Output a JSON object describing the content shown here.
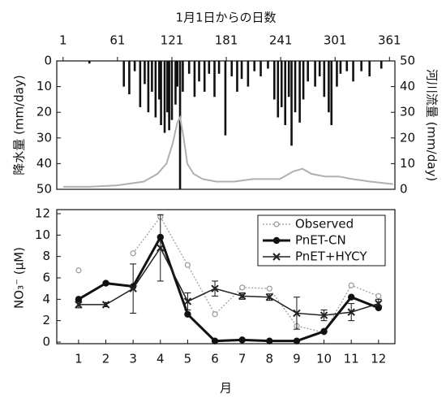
{
  "chart_data": [
    {
      "type": "bar",
      "xlabel": "1月1日からの日数",
      "ylabel": "降水量 (mm/day)",
      "y2label": "河川流量 (mm/day)",
      "xlim": [
        -6,
        367
      ],
      "xticks": [
        1,
        61,
        121,
        181,
        241,
        301,
        361
      ],
      "ylim": [
        0,
        50
      ],
      "y_inverted": true,
      "yticks": [
        0,
        10,
        20,
        30,
        40,
        50
      ],
      "y2lim": [
        0,
        50
      ],
      "y2ticks": [
        0,
        10,
        20,
        30,
        40,
        50
      ],
      "series": [
        {
          "type": "bar",
          "color": "#111111",
          "x": [
            30,
            68,
            74,
            80,
            86,
            91,
            95,
            99,
            103,
            107,
            109,
            113,
            116,
            118,
            121,
            125,
            127,
            130,
            133,
            140,
            146,
            151,
            157,
            162,
            168,
            173,
            180,
            187,
            193,
            198,
            205,
            212,
            219,
            227,
            234,
            238,
            242,
            246,
            250,
            253,
            257,
            262,
            266,
            271,
            279,
            284,
            289,
            294,
            297,
            303,
            307,
            314,
            321,
            330,
            339,
            352
          ],
          "values": [
            1,
            10,
            13,
            4,
            18,
            9,
            20,
            12,
            22,
            15,
            25,
            28,
            20,
            27,
            23,
            17,
            10,
            50,
            12,
            5,
            14,
            8,
            12,
            5,
            14,
            5,
            29,
            6,
            12,
            7,
            10,
            4,
            6,
            3,
            15,
            22,
            18,
            25,
            14,
            33,
            20,
            24,
            15,
            8,
            10,
            6,
            14,
            20,
            25,
            10,
            5,
            4,
            8,
            4,
            6,
            3
          ]
        },
        {
          "type": "line",
          "axis": "y2",
          "color": "#b0b0b0",
          "x": [
            1,
            30,
            60,
            90,
            105,
            115,
            122,
            127,
            130,
            134,
            138,
            145,
            155,
            170,
            190,
            210,
            225,
            240,
            255,
            265,
            275,
            290,
            305,
            320,
            340,
            365
          ],
          "values": [
            1,
            1,
            1.5,
            3,
            6,
            10,
            18,
            26,
            28,
            20,
            10,
            6,
            4,
            3,
            3,
            4,
            4,
            4,
            7,
            8,
            6,
            5,
            5,
            4,
            3,
            2
          ]
        }
      ]
    },
    {
      "type": "line",
      "xlabel": "月",
      "ylabel": "NO₃⁻ (μM)",
      "x": [
        1,
        2,
        3,
        4,
        5,
        6,
        7,
        8,
        9,
        10,
        11,
        12
      ],
      "xlim": [
        0.2,
        12.6
      ],
      "xticks": [
        1,
        2,
        3,
        4,
        5,
        6,
        7,
        8,
        9,
        10,
        11,
        12
      ],
      "ylim": [
        0,
        12
      ],
      "yticks": [
        0,
        2,
        4,
        6,
        8,
        10,
        12
      ],
      "legend": "upper right",
      "series": [
        {
          "name": "Observed",
          "color": "#999999",
          "linestyle": "dotted",
          "marker": "open-circle",
          "values": [
            6.7,
            null,
            8.3,
            11.7,
            7.2,
            2.6,
            5.1,
            5.0,
            1.5,
            0.9,
            5.3,
            4.3
          ]
        },
        {
          "name": "PnET-CN",
          "color": "#111111",
          "linestyle": "thick",
          "marker": "circle",
          "values": [
            4.0,
            5.5,
            5.2,
            9.8,
            2.6,
            0.1,
            0.2,
            0.1,
            0.1,
            1.0,
            4.2,
            3.2
          ]
        },
        {
          "name": "PnET+HYCY",
          "color": "#222222",
          "linestyle": "solid",
          "marker": "x",
          "values": [
            3.5,
            3.5,
            5.0,
            8.8,
            3.8,
            5.0,
            4.3,
            4.2,
            2.7,
            2.5,
            2.8,
            3.6
          ],
          "errors": [
            0.3,
            0.2,
            2.3,
            3.1,
            0.8,
            0.7,
            0.3,
            0.3,
            1.5,
            0.5,
            0.8,
            0.4
          ]
        }
      ]
    }
  ]
}
